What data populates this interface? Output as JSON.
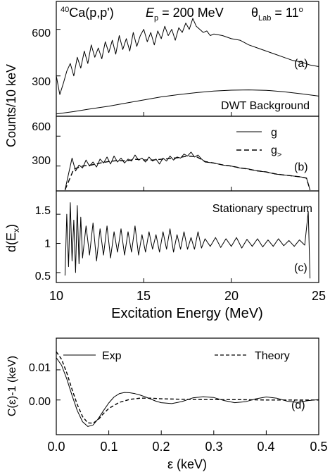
{
  "chart_data": [
    {
      "panel": "(a)",
      "type": "line",
      "title_parts": {
        "reaction_sup": "40",
        "reaction": "Ca(p,p')",
        "energy_var": "E",
        "energy_sub": "p",
        "energy_val": " = 200 MeV",
        "angle_var": "θ",
        "angle_sub": "Lab",
        "angle_val": " = 11",
        "angle_sup": "o"
      },
      "ylabel": "Counts/10 keV",
      "xlim": [
        10,
        25
      ],
      "ylim": [
        40,
        780
      ],
      "yticks": [
        300,
        600
      ],
      "annotation": "DWT Background",
      "series": [
        {
          "role": "spectrum",
          "x": [
            10.0,
            10.2,
            10.4,
            10.6,
            10.8,
            11.0,
            11.2,
            11.4,
            11.6,
            11.8,
            12.0,
            12.2,
            12.4,
            12.6,
            12.8,
            13.0,
            13.2,
            13.4,
            13.6,
            13.8,
            14.0,
            14.2,
            14.4,
            14.6,
            14.8,
            15.0,
            15.2,
            15.4,
            15.6,
            15.8,
            16.0,
            16.2,
            16.4,
            16.6,
            16.8,
            17.0,
            17.2,
            17.4,
            17.6,
            17.8,
            18.0,
            18.2,
            18.4,
            18.6,
            18.8,
            19.0,
            19.5,
            20.0,
            20.5,
            21.0,
            21.5,
            22.0,
            22.5,
            23.0,
            23.5,
            24.0,
            24.5,
            25.0
          ],
          "y": [
            300,
            180,
            250,
            330,
            380,
            300,
            420,
            350,
            460,
            380,
            500,
            420,
            480,
            410,
            520,
            450,
            530,
            440,
            560,
            470,
            540,
            460,
            580,
            490,
            560,
            600,
            520,
            580,
            500,
            590,
            540,
            620,
            560,
            600,
            530,
            610,
            580,
            640,
            600,
            670,
            620,
            600,
            580,
            590,
            560,
            570,
            560,
            540,
            530,
            500,
            480,
            460,
            440,
            420,
            400,
            390,
            370,
            360
          ]
        },
        {
          "role": "background",
          "name": "DWT Background",
          "x": [
            10,
            11,
            12,
            13,
            14,
            15,
            16,
            17,
            18,
            19,
            20,
            21,
            22,
            23,
            24,
            25
          ],
          "y": [
            55,
            70,
            88,
            105,
            125,
            145,
            165,
            180,
            192,
            202,
            208,
            210,
            207,
            198,
            185,
            170
          ]
        }
      ]
    },
    {
      "panel": "(b)",
      "type": "line",
      "xlim": [
        10,
        25
      ],
      "ylim": [
        50,
        800
      ],
      "yticks": [
        300,
        600
      ],
      "legend": {
        "position": "top-right",
        "entries": [
          "g",
          "g"
        ],
        "entry_subscripts": [
          "",
          ">"
        ]
      },
      "series": [
        {
          "name": "g",
          "style": "solid",
          "x": [
            10.5,
            10.7,
            10.9,
            11.1,
            11.3,
            11.5,
            11.7,
            11.9,
            12.1,
            12.3,
            12.5,
            12.7,
            12.9,
            13.1,
            13.3,
            13.5,
            13.7,
            13.9,
            14.1,
            14.3,
            14.5,
            14.7,
            14.9,
            15.1,
            15.3,
            15.5,
            15.7,
            15.9,
            16.1,
            16.3,
            16.5,
            16.7,
            16.9,
            17.1,
            17.3,
            17.5,
            17.7,
            17.9,
            18.1,
            18.3,
            18.5,
            19.0,
            19.5,
            20.0,
            20.5,
            21.0,
            21.5,
            22.0,
            22.5,
            23.0,
            23.5,
            24.0,
            24.3,
            24.5
          ],
          "y": [
            60,
            220,
            380,
            250,
            310,
            280,
            360,
            300,
            340,
            290,
            370,
            330,
            390,
            320,
            400,
            340,
            380,
            330,
            370,
            350,
            410,
            360,
            380,
            340,
            390,
            350,
            370,
            320,
            380,
            350,
            400,
            360,
            390,
            380,
            420,
            400,
            440,
            390,
            410,
            370,
            340,
            330,
            310,
            300,
            280,
            270,
            250,
            240,
            220,
            210,
            200,
            190,
            180,
            60
          ]
        },
        {
          "name": "g>",
          "style": "dashed",
          "x": [
            10.5,
            11.0,
            11.5,
            12.0,
            12.5,
            13.0,
            13.5,
            14.0,
            14.5,
            15.0,
            15.5,
            16.0,
            16.5,
            17.0,
            17.5,
            18.0,
            18.5,
            19.0,
            19.5,
            20.0,
            20.5,
            21.0,
            21.5,
            22.0,
            22.5,
            23.0,
            23.5,
            24.0,
            24.3,
            24.5
          ],
          "y": [
            60,
            270,
            300,
            310,
            330,
            345,
            355,
            352,
            368,
            362,
            360,
            368,
            375,
            385,
            400,
            395,
            345,
            330,
            312,
            300,
            282,
            268,
            252,
            240,
            222,
            210,
            200,
            190,
            178,
            60
          ]
        }
      ]
    },
    {
      "panel": "(c)",
      "type": "line",
      "xlabel": "Excitation Energy (MeV)",
      "ylabel_main": "d(E",
      "ylabel_sub": "x",
      "ylabel_end": ")",
      "annotation": "Stationary spectrum",
      "xlim": [
        10,
        25
      ],
      "ylim": [
        0.33,
        1.9
      ],
      "xticks": [
        10,
        15,
        20,
        25
      ],
      "yticks": [
        0.5,
        1.0,
        1.5
      ],
      "series": [
        {
          "name": "stationary",
          "x": [
            10.5,
            10.6,
            10.7,
            10.8,
            10.9,
            11.0,
            11.1,
            11.2,
            11.3,
            11.4,
            11.5,
            11.7,
            11.9,
            12.1,
            12.3,
            12.5,
            12.7,
            12.9,
            13.1,
            13.3,
            13.5,
            13.7,
            13.9,
            14.1,
            14.3,
            14.5,
            14.7,
            14.9,
            15.1,
            15.3,
            15.5,
            15.7,
            15.9,
            16.1,
            16.3,
            16.5,
            16.7,
            16.9,
            17.1,
            17.3,
            17.5,
            17.7,
            17.9,
            18.1,
            18.3,
            18.5,
            18.8,
            19.1,
            19.4,
            19.7,
            20.0,
            20.3,
            20.6,
            20.9,
            21.2,
            21.5,
            21.8,
            22.1,
            22.4,
            22.7,
            23.0,
            23.3,
            23.6,
            23.9,
            24.2,
            24.4,
            24.5
          ],
          "y": [
            0.45,
            1.5,
            0.6,
            1.7,
            0.7,
            1.4,
            0.5,
            1.65,
            0.65,
            1.45,
            0.75,
            1.3,
            0.8,
            1.35,
            0.7,
            1.25,
            0.8,
            1.3,
            0.75,
            1.2,
            0.85,
            1.25,
            0.8,
            1.2,
            0.85,
            1.3,
            0.8,
            1.15,
            0.85,
            1.2,
            0.9,
            1.15,
            0.85,
            1.2,
            0.9,
            1.25,
            0.85,
            1.15,
            0.9,
            1.2,
            0.9,
            1.1,
            0.9,
            1.2,
            0.92,
            1.08,
            0.95,
            1.1,
            0.93,
            1.08,
            0.95,
            1.1,
            0.92,
            1.07,
            0.95,
            1.08,
            0.94,
            1.06,
            0.95,
            1.08,
            0.96,
            1.05,
            0.95,
            1.06,
            0.97,
            1.55,
            0.4
          ]
        }
      ]
    },
    {
      "panel": "(d)",
      "type": "line",
      "xlabel": "ε (keV)",
      "ylabel": "C(ε)-1 (keV)",
      "xlim": [
        0.0,
        0.5
      ],
      "ylim": [
        -0.0115,
        0.0205
      ],
      "xticks": [
        "0.0",
        "0.1",
        "0.2",
        "0.3",
        "0.4",
        "0.5"
      ],
      "yticks": [
        "0.00",
        "0.01"
      ],
      "legend": {
        "position": "top",
        "entries": [
          "Exp",
          "Theory"
        ]
      },
      "series": [
        {
          "name": "Exp",
          "style": "solid",
          "x": [
            0.0,
            0.01,
            0.02,
            0.03,
            0.04,
            0.05,
            0.06,
            0.07,
            0.08,
            0.09,
            0.1,
            0.11,
            0.12,
            0.13,
            0.14,
            0.15,
            0.16,
            0.17,
            0.18,
            0.19,
            0.2,
            0.22,
            0.24,
            0.26,
            0.28,
            0.3,
            0.32,
            0.34,
            0.36,
            0.38,
            0.4,
            0.42,
            0.44,
            0.46,
            0.48,
            0.5
          ],
          "y": [
            0.014,
            0.0115,
            0.007,
            0.0015,
            -0.0035,
            -0.0072,
            -0.0088,
            -0.0083,
            -0.0062,
            -0.0035,
            -0.001,
            0.001,
            0.0021,
            0.0025,
            0.0024,
            0.0021,
            0.0016,
            0.001,
            0.0003,
            -0.0004,
            -0.0009,
            -0.0012,
            -0.0005,
            0.0007,
            0.0011,
            0.0008,
            -0.0002,
            -0.0009,
            -0.0006,
            0.0004,
            0.001,
            0.0006,
            -0.0004,
            -0.0008,
            -0.0002,
            0.0001
          ]
        },
        {
          "name": "Theory",
          "style": "dashed",
          "x": [
            0.0,
            0.01,
            0.02,
            0.03,
            0.04,
            0.05,
            0.06,
            0.07,
            0.08,
            0.09,
            0.1,
            0.12,
            0.14,
            0.16,
            0.18,
            0.2,
            0.25,
            0.3,
            0.35,
            0.4,
            0.45,
            0.5
          ],
          "y": [
            0.016,
            0.0135,
            0.009,
            0.0035,
            -0.0015,
            -0.0055,
            -0.0076,
            -0.0077,
            -0.0065,
            -0.0045,
            -0.0028,
            -0.0008,
            0.0002,
            0.0006,
            0.0006,
            0.0004,
            0.0002,
            0.0001,
            0.0001,
            0.0,
            0.0,
            0.0
          ]
        }
      ]
    }
  ],
  "shared_ylabel_ab": "Counts/10 keV",
  "colors": {
    "line": "#000000",
    "background": "#ffffff"
  }
}
